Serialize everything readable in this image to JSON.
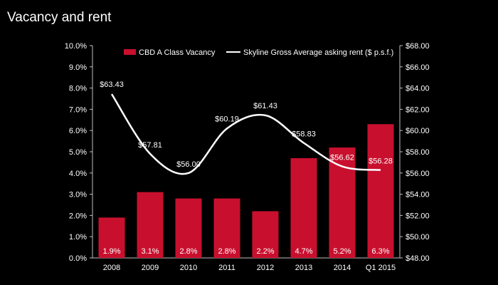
{
  "title": "Vacancy and rent",
  "chart_data": {
    "type": "bar",
    "categories": [
      "2008",
      "2009",
      "2010",
      "2011",
      "2012",
      "2013",
      "2014",
      "Q1 2015"
    ],
    "series": [
      {
        "name": "CBD A Class Vacancy",
        "type": "bar",
        "axis": "left",
        "values": [
          1.9,
          3.1,
          2.8,
          2.8,
          2.2,
          4.7,
          5.2,
          6.3
        ],
        "labels": [
          "1.9%",
          "3.1%",
          "2.8%",
          "2.8%",
          "2.2%",
          "4.7%",
          "5.2%",
          "6.3%"
        ],
        "color": "#c8102e"
      },
      {
        "name": "Skyline Gross Average asking rent ($ p.s.f.)",
        "type": "line",
        "axis": "right",
        "values": [
          63.43,
          57.81,
          56.0,
          60.19,
          61.43,
          58.83,
          56.62,
          56.28
        ],
        "labels": [
          "$63.43",
          "$57.81",
          "$56.00",
          "$60.19",
          "$61.43",
          "$58.83",
          "$56.62",
          "$56.28"
        ],
        "color": "#ffffff"
      }
    ],
    "y_left": {
      "range": [
        0,
        10
      ],
      "ticks": [
        "0.0%",
        "1.0%",
        "2.0%",
        "3.0%",
        "4.0%",
        "5.0%",
        "6.0%",
        "7.0%",
        "8.0%",
        "9.0%",
        "10.0%"
      ]
    },
    "y_right": {
      "range": [
        48,
        68
      ],
      "ticks": [
        "$48.00",
        "$50.00",
        "$52.00",
        "$54.00",
        "$56.00",
        "$58.00",
        "$60.00",
        "$62.00",
        "$64.00",
        "$66.00",
        "$68.00"
      ]
    },
    "grid": false,
    "legend_position": "top"
  }
}
